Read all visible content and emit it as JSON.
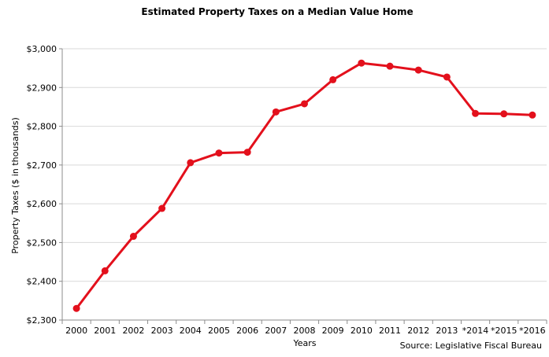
{
  "chart_data": {
    "type": "line",
    "title": "Estimated Property Taxes on a Median Value Home",
    "xlabel": "Years",
    "ylabel": "Property Taxes ($ in thousands)",
    "source": "Source: Legislative Fiscal Bureau",
    "ylim": [
      2300,
      3000
    ],
    "yticks": [
      2300,
      2400,
      2500,
      2600,
      2700,
      2800,
      2900,
      3000
    ],
    "ytick_labels": [
      "$2,300",
      "$2,400",
      "$2,500",
      "$2,600",
      "$2,700",
      "$2,800",
      "$2,900",
      "$3,000"
    ],
    "grid": "horizontal",
    "legend": "none",
    "categories": [
      "2000",
      "2001",
      "2002",
      "2003",
      "2004",
      "2005",
      "2006",
      "2007",
      "2008",
      "2009",
      "2010",
      "2011",
      "2012",
      "2013",
      "*2014",
      "*2015",
      "*2016"
    ],
    "series": [
      {
        "color": "#e3101c",
        "values": [
          2330,
          2427,
          2516,
          2588,
          2706,
          2731,
          2733,
          2837,
          2858,
          2920,
          2963,
          2955,
          2945,
          2927,
          2833,
          2832,
          2829
        ]
      }
    ]
  }
}
